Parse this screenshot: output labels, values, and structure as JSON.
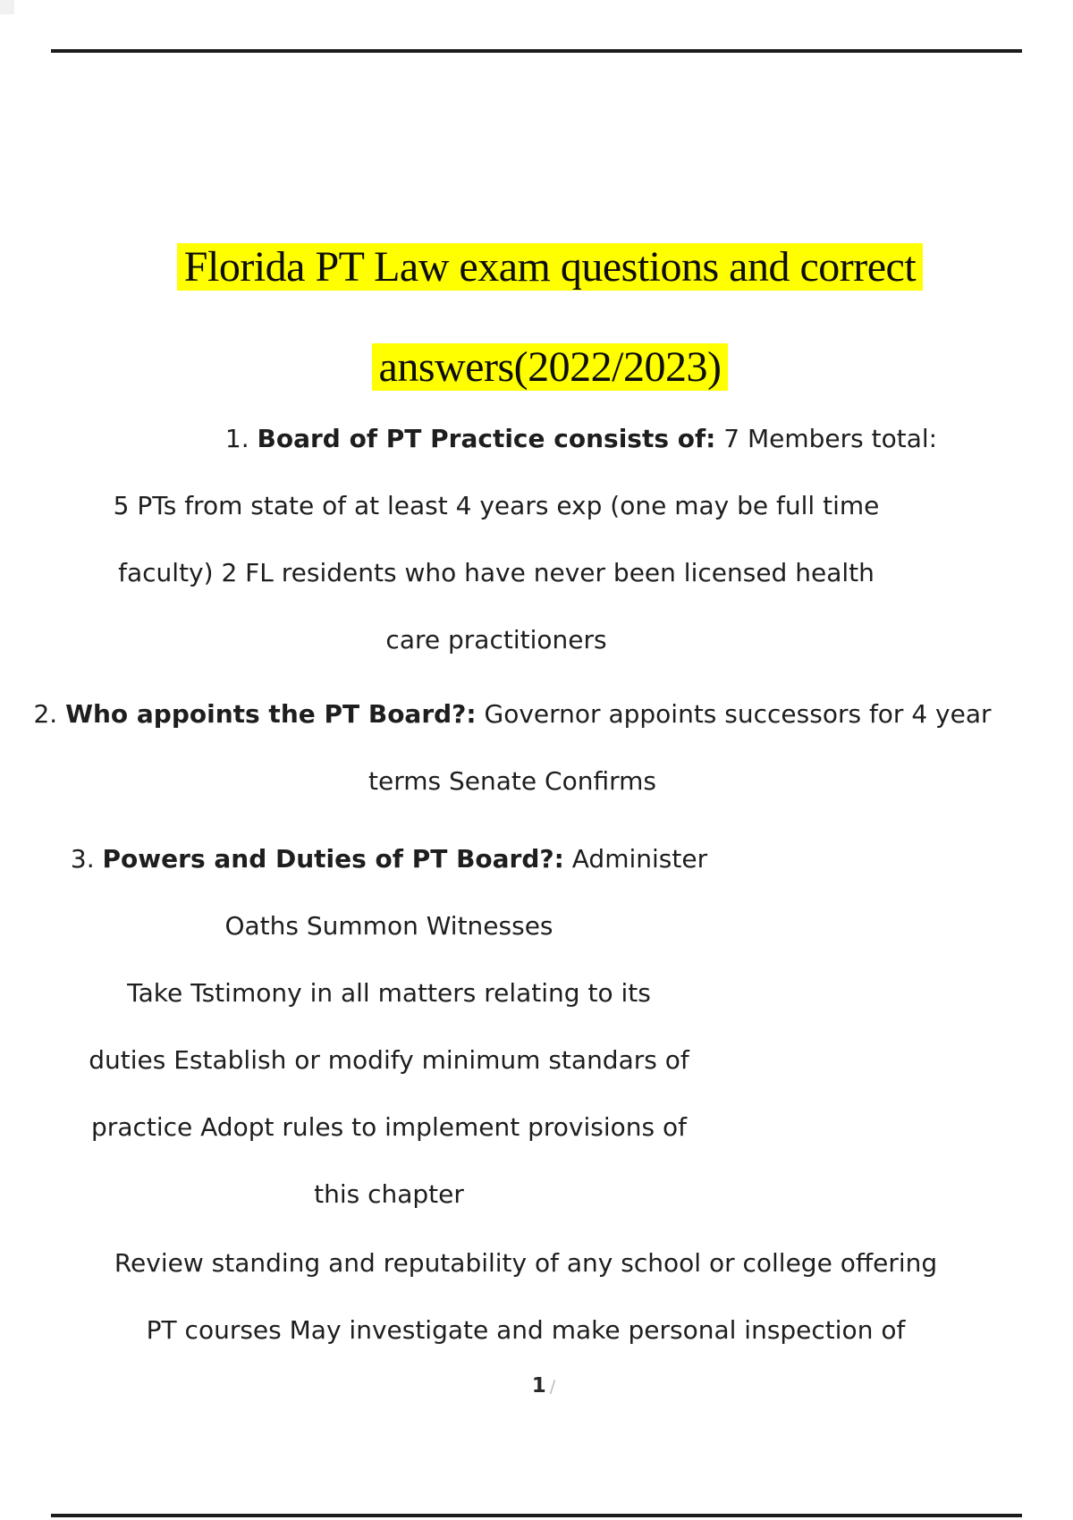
{
  "document": {
    "title": {
      "line1": "Florida PT Law exam questions and correct",
      "line2": "answers(2022/2023)",
      "highlight_color": "#ffff00"
    },
    "questions": [
      {
        "number": "1.",
        "prompt": "Board of PT Practice consists of:",
        "answer_start": " 7 Members total:",
        "lines": [
          "5 PTs from state of at least 4 years exp (one may be full time",
          "faculty) 2 FL residents who have never been licensed health",
          "care practitioners"
        ]
      },
      {
        "number": "2.",
        "prompt": "Who appoints the PT Board?:",
        "answer_start": " Governor appoints successors for 4 year",
        "lines": [
          "terms Senate Confirms"
        ]
      },
      {
        "number": "3.",
        "prompt": "Powers and Duties of PT Board?:",
        "answer_start": " Administer",
        "lines": [
          "Oaths Summon Witnesses",
          "Take Tstimony in all matters relating to its",
          "duties Establish or modify minimum standars of",
          "practice Adopt rules to implement provisions of",
          "this chapter"
        ],
        "lines_block2": [
          "Review standing and reputability of any school or college offering",
          "PT courses May investigate and make personal inspection of"
        ]
      }
    ],
    "footer": {
      "page_number": "1",
      "separator": "/"
    }
  }
}
